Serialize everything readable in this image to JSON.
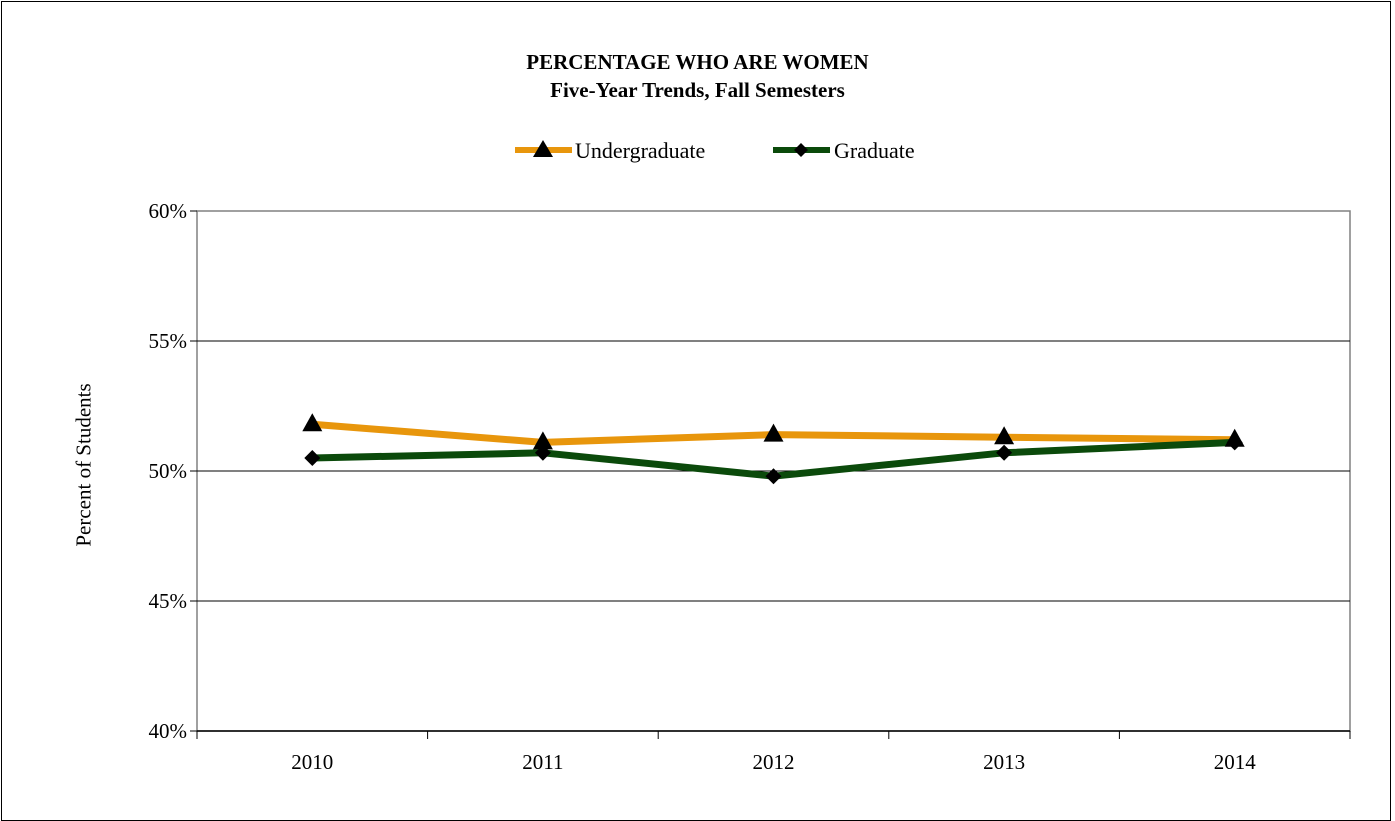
{
  "chart_data": {
    "type": "line",
    "title": "PERCENTAGE WHO ARE WOMEN",
    "subtitle": "Five-Year Trends, Fall Semesters",
    "ylabel": "Percent of Students",
    "xlabel": "",
    "categories": [
      "2010",
      "2011",
      "2012",
      "2013",
      "2014"
    ],
    "ylim": [
      40,
      60
    ],
    "yticks": [
      40,
      45,
      50,
      55,
      60
    ],
    "ytick_labels": [
      "40%",
      "45%",
      "50%",
      "55%",
      "60%"
    ],
    "grid": true,
    "legend_position": "top-center",
    "series": [
      {
        "name": "Undergraduate",
        "values": [
          51.8,
          51.1,
          51.4,
          51.3,
          51.2
        ],
        "color": "#E8960C",
        "marker": "triangle"
      },
      {
        "name": "Graduate",
        "values": [
          50.5,
          50.7,
          49.8,
          50.7,
          51.1
        ],
        "color": "#0B4A0B",
        "marker": "diamond"
      }
    ]
  }
}
